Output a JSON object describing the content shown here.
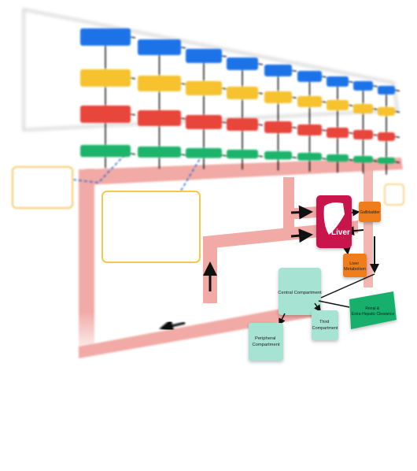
{
  "nodes": {
    "liver": "Liver",
    "gallbladder": "Gallbladder",
    "liver_metabolism": "Liver Metabolism",
    "central_compartment": "Central Compartment",
    "peripheral_compartment": "Peripheral Compartment",
    "third_compartment": "Third Compartment",
    "renal_clearance": "Renal & Extra-Hepatic Clearance"
  },
  "colors": {
    "blue": "#1e73e8",
    "yellow": "#f6c22e",
    "red": "#e8443a",
    "green": "#1fb36b",
    "flow": "#f1aaa5",
    "liver": "#c8174e",
    "orange": "#ef7d1c",
    "mint": "#a6e3d3",
    "teal": "#17b06c",
    "outline_yellow": "#f4c84a"
  }
}
